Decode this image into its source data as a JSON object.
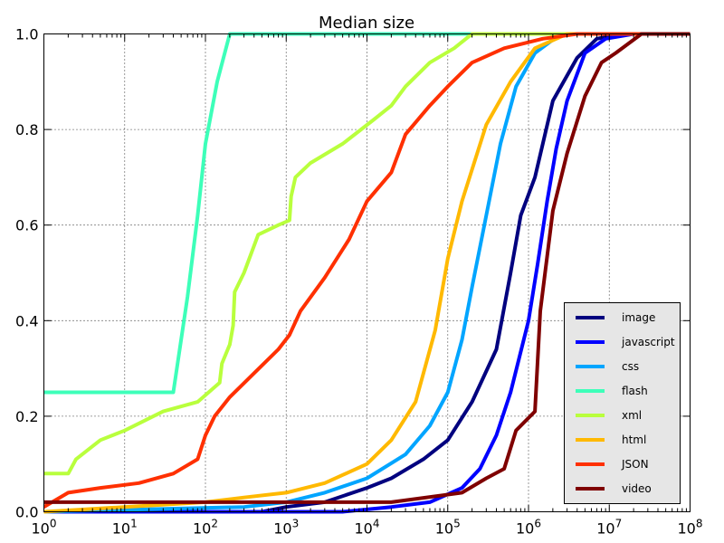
{
  "chart_data": {
    "type": "line",
    "title": "Median size",
    "xlabel": "",
    "ylabel": "",
    "xscale": "log",
    "xlim": [
      1,
      100000000
    ],
    "ylim": [
      0,
      1
    ],
    "grid": true,
    "legend_position": "lower-right",
    "x_ticks": [
      {
        "value": 1,
        "base": "10",
        "exp": "0"
      },
      {
        "value": 10,
        "base": "10",
        "exp": "1"
      },
      {
        "value": 100,
        "base": "10",
        "exp": "2"
      },
      {
        "value": 1000,
        "base": "10",
        "exp": "3"
      },
      {
        "value": 10000,
        "base": "10",
        "exp": "4"
      },
      {
        "value": 100000,
        "base": "10",
        "exp": "5"
      },
      {
        "value": 1000000,
        "base": "10",
        "exp": "6"
      },
      {
        "value": 10000000,
        "base": "10",
        "exp": "7"
      },
      {
        "value": 100000000,
        "base": "10",
        "exp": "8"
      }
    ],
    "y_ticks": [
      {
        "value": 0,
        "label": "0.0"
      },
      {
        "value": 0.2,
        "label": "0.2"
      },
      {
        "value": 0.4,
        "label": "0.4"
      },
      {
        "value": 0.6,
        "label": "0.6"
      },
      {
        "value": 0.8,
        "label": "0.8"
      },
      {
        "value": 1,
        "label": "1.0"
      }
    ],
    "series": [
      {
        "name": "image",
        "color": "#00007f",
        "points": [
          [
            1,
            0.0
          ],
          [
            500,
            0.0
          ],
          [
            1000,
            0.01
          ],
          [
            3000,
            0.02
          ],
          [
            10000,
            0.05
          ],
          [
            20000,
            0.07
          ],
          [
            50000,
            0.11
          ],
          [
            100000,
            0.15
          ],
          [
            200000,
            0.23
          ],
          [
            400000,
            0.34
          ],
          [
            600000,
            0.5
          ],
          [
            800000,
            0.62
          ],
          [
            1200000,
            0.7
          ],
          [
            2000000,
            0.86
          ],
          [
            4000000,
            0.95
          ],
          [
            7000000,
            0.99
          ],
          [
            15000000,
            1.0
          ],
          [
            100000000,
            1.0
          ]
        ]
      },
      {
        "name": "javascript",
        "color": "#0000ff",
        "points": [
          [
            1,
            0.0
          ],
          [
            5000,
            0.0
          ],
          [
            20000,
            0.01
          ],
          [
            60000,
            0.02
          ],
          [
            150000,
            0.05
          ],
          [
            250000,
            0.09
          ],
          [
            400000,
            0.16
          ],
          [
            600000,
            0.25
          ],
          [
            1000000,
            0.4
          ],
          [
            1300000,
            0.52
          ],
          [
            1700000,
            0.65
          ],
          [
            2200000,
            0.76
          ],
          [
            3000000,
            0.86
          ],
          [
            5000000,
            0.96
          ],
          [
            9000000,
            0.99
          ],
          [
            20000000,
            1.0
          ],
          [
            100000000,
            1.0
          ]
        ]
      },
      {
        "name": "css",
        "color": "#00a5ff",
        "points": [
          [
            1,
            0.0
          ],
          [
            300,
            0.01
          ],
          [
            1000,
            0.02
          ],
          [
            3000,
            0.04
          ],
          [
            10000,
            0.07
          ],
          [
            30000,
            0.12
          ],
          [
            60000,
            0.18
          ],
          [
            100000,
            0.25
          ],
          [
            150000,
            0.36
          ],
          [
            200000,
            0.47
          ],
          [
            300000,
            0.62
          ],
          [
            450000,
            0.77
          ],
          [
            700000,
            0.89
          ],
          [
            1200000,
            0.96
          ],
          [
            2500000,
            1.0
          ],
          [
            100000000,
            1.0
          ]
        ]
      },
      {
        "name": "flash",
        "color": "#3dffb9",
        "points": [
          [
            1,
            0.25
          ],
          [
            40,
            0.25
          ],
          [
            60,
            0.45
          ],
          [
            80,
            0.62
          ],
          [
            100,
            0.77
          ],
          [
            140,
            0.9
          ],
          [
            200,
            1.0
          ],
          [
            100000000,
            1.0
          ]
        ]
      },
      {
        "name": "xml",
        "color": "#b9ff3d",
        "points": [
          [
            1,
            0.08
          ],
          [
            2,
            0.08
          ],
          [
            2.5,
            0.11
          ],
          [
            5,
            0.15
          ],
          [
            10,
            0.17
          ],
          [
            30,
            0.21
          ],
          [
            80,
            0.23
          ],
          [
            150,
            0.27
          ],
          [
            160,
            0.31
          ],
          [
            200,
            0.35
          ],
          [
            220,
            0.39
          ],
          [
            230,
            0.46
          ],
          [
            300,
            0.5
          ],
          [
            450,
            0.58
          ],
          [
            800,
            0.6
          ],
          [
            1100,
            0.61
          ],
          [
            1150,
            0.66
          ],
          [
            1300,
            0.7
          ],
          [
            2000,
            0.73
          ],
          [
            5000,
            0.77
          ],
          [
            12000,
            0.82
          ],
          [
            20000,
            0.85
          ],
          [
            30000,
            0.89
          ],
          [
            60000,
            0.94
          ],
          [
            120000,
            0.97
          ],
          [
            200000,
            1.0
          ],
          [
            100000000,
            1.0
          ]
        ]
      },
      {
        "name": "html",
        "color": "#ffb900",
        "points": [
          [
            1,
            0.0
          ],
          [
            100,
            0.02
          ],
          [
            300,
            0.03
          ],
          [
            1000,
            0.04
          ],
          [
            3000,
            0.06
          ],
          [
            10000,
            0.1
          ],
          [
            20000,
            0.15
          ],
          [
            40000,
            0.23
          ],
          [
            70000,
            0.38
          ],
          [
            100000,
            0.53
          ],
          [
            150000,
            0.65
          ],
          [
            300000,
            0.81
          ],
          [
            600000,
            0.9
          ],
          [
            1200000,
            0.97
          ],
          [
            3000000,
            1.0
          ],
          [
            100000000,
            1.0
          ]
        ]
      },
      {
        "name": "JSON",
        "color": "#ff3000",
        "points": [
          [
            1,
            0.01
          ],
          [
            2,
            0.04
          ],
          [
            5,
            0.05
          ],
          [
            15,
            0.06
          ],
          [
            40,
            0.08
          ],
          [
            80,
            0.11
          ],
          [
            100,
            0.16
          ],
          [
            130,
            0.2
          ],
          [
            200,
            0.24
          ],
          [
            400,
            0.29
          ],
          [
            800,
            0.34
          ],
          [
            1100,
            0.37
          ],
          [
            1500,
            0.42
          ],
          [
            3000,
            0.49
          ],
          [
            6000,
            0.57
          ],
          [
            10000,
            0.65
          ],
          [
            20000,
            0.71
          ],
          [
            30000,
            0.79
          ],
          [
            60000,
            0.85
          ],
          [
            100000,
            0.89
          ],
          [
            200000,
            0.94
          ],
          [
            500000,
            0.97
          ],
          [
            1500000,
            0.99
          ],
          [
            4000000,
            1.0
          ],
          [
            100000000,
            1.0
          ]
        ]
      },
      {
        "name": "video",
        "color": "#7f0000",
        "points": [
          [
            1,
            0.02
          ],
          [
            20000,
            0.02
          ],
          [
            150000,
            0.04
          ],
          [
            300000,
            0.07
          ],
          [
            500000,
            0.09
          ],
          [
            700000,
            0.17
          ],
          [
            1200000,
            0.21
          ],
          [
            1400000,
            0.42
          ],
          [
            2000000,
            0.63
          ],
          [
            3000000,
            0.75
          ],
          [
            5000000,
            0.87
          ],
          [
            8000000,
            0.94
          ],
          [
            12000000,
            0.96
          ],
          [
            25000000,
            1.0
          ],
          [
            100000000,
            1.0
          ]
        ]
      }
    ]
  }
}
